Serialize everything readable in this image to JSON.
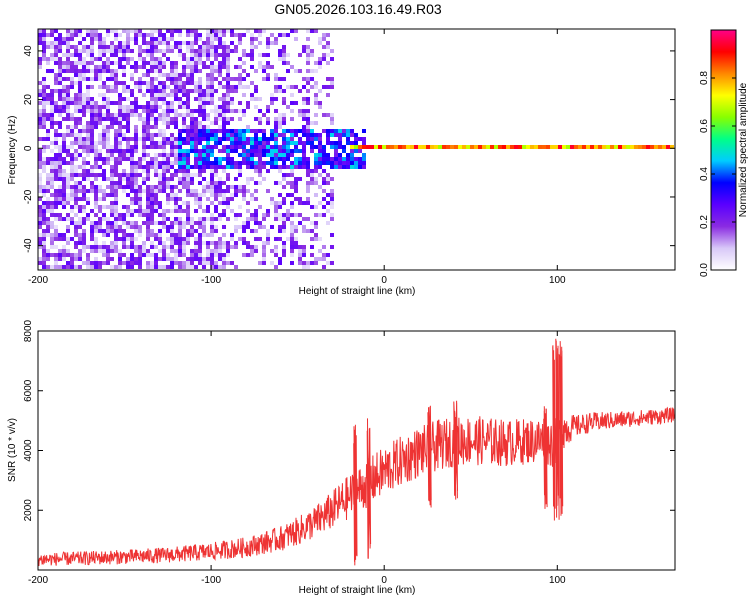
{
  "title": "GN05.2026.103.16.49.R03",
  "chart_data": [
    {
      "type": "heatmap",
      "xlabel": "Height of straight line (km)",
      "ylabel": "Frequency (Hz)",
      "xlim": [
        -200,
        168
      ],
      "ylim": [
        -50,
        49
      ],
      "xticks": [
        -200,
        -100,
        0,
        100
      ],
      "xtick_labels": [
        "-200",
        "-100",
        "0",
        "100"
      ],
      "yticks": [
        -40,
        -20,
        0,
        20,
        40
      ],
      "ytick_labels": [
        "-40",
        "-20",
        "0",
        "20",
        "40"
      ],
      "colorbar": {
        "label": "Normalized spectral amplitude",
        "range": [
          0,
          1
        ],
        "ticks": [
          0.0,
          0.2,
          0.4,
          0.6,
          0.8
        ],
        "tick_labels": [
          "0.0",
          "0.2",
          "0.4",
          "0.6",
          "0.8"
        ],
        "colors": [
          "#ffffff",
          "#d8c8f8",
          "#8a2be2",
          "#5a00ff",
          "#0000ff",
          "#00ccff",
          "#00ff88",
          "#88ff00",
          "#ffff00",
          "#ff8800",
          "#ff0000",
          "#ff0088"
        ]
      },
      "features": [
        {
          "label": "broadband scatter",
          "x_range": [
            -200,
            -30
          ],
          "freq_range": [
            -50,
            49
          ],
          "amplitude": 0.12
        },
        {
          "label": "dense band",
          "x_range": [
            -120,
            -10
          ],
          "freq_range": [
            -8,
            8
          ],
          "amplitude": 0.3
        },
        {
          "label": "narrow line near 0 Hz",
          "x_range": [
            -20,
            168
          ],
          "freq_range": [
            -1,
            1
          ],
          "amplitude": 0.85
        }
      ]
    },
    {
      "type": "line",
      "xlabel": "Height of straight line (km)",
      "ylabel": "SNR (10 * v/v)",
      "xlim": [
        -200,
        168
      ],
      "ylim": [
        0,
        8000
      ],
      "xticks": [
        -200,
        -100,
        0,
        100
      ],
      "xtick_labels": [
        "-200",
        "-100",
        "0",
        "100"
      ],
      "yticks": [
        2000,
        4000,
        6000,
        8000
      ],
      "ytick_labels": [
        "2000",
        "4000",
        "6000",
        "8000"
      ],
      "color": "#ee3333",
      "series": [
        {
          "name": "SNR",
          "x": [
            -200,
            -180,
            -160,
            -140,
            -120,
            -100,
            -80,
            -70,
            -60,
            -50,
            -40,
            -30,
            -25,
            -20,
            -15,
            -10,
            -5,
            0,
            10,
            20,
            30,
            40,
            50,
            60,
            70,
            80,
            90,
            95,
            100,
            103,
            110,
            120,
            130,
            140,
            150,
            160,
            168
          ],
          "y": [
            350,
            380,
            420,
            460,
            520,
            620,
            760,
            900,
            1050,
            1300,
            1600,
            2000,
            2250,
            2450,
            2650,
            2900,
            3100,
            3300,
            3650,
            3950,
            4150,
            4300,
            4350,
            4300,
            4250,
            4300,
            4350,
            4300,
            4200,
            4700,
            4800,
            4950,
            5000,
            5050,
            5100,
            5150,
            5200
          ],
          "noise": [
            220,
            230,
            240,
            250,
            270,
            300,
            340,
            380,
            420,
            480,
            550,
            650,
            700,
            760,
            800,
            820,
            830,
            840,
            850,
            860,
            860,
            850,
            840,
            820,
            800,
            780,
            780,
            800,
            900,
            700,
            380,
            330,
            300,
            280,
            270,
            260,
            250
          ]
        }
      ],
      "spikes": [
        {
          "x": -17,
          "y_min": 150,
          "y_max": 4900
        },
        {
          "x": -9,
          "y_min": 200,
          "y_max": 5100
        },
        {
          "x": 26,
          "y_min": 2000,
          "y_max": 5600
        },
        {
          "x": 41,
          "y_min": 2200,
          "y_max": 5750
        },
        {
          "x": 93,
          "y_min": 2000,
          "y_max": 5500
        },
        {
          "x": 98,
          "y_min": 1500,
          "y_max": 7700
        },
        {
          "x": 100,
          "y_min": 1600,
          "y_max": 8000
        },
        {
          "x": 102,
          "y_min": 1800,
          "y_max": 8000
        }
      ]
    }
  ]
}
